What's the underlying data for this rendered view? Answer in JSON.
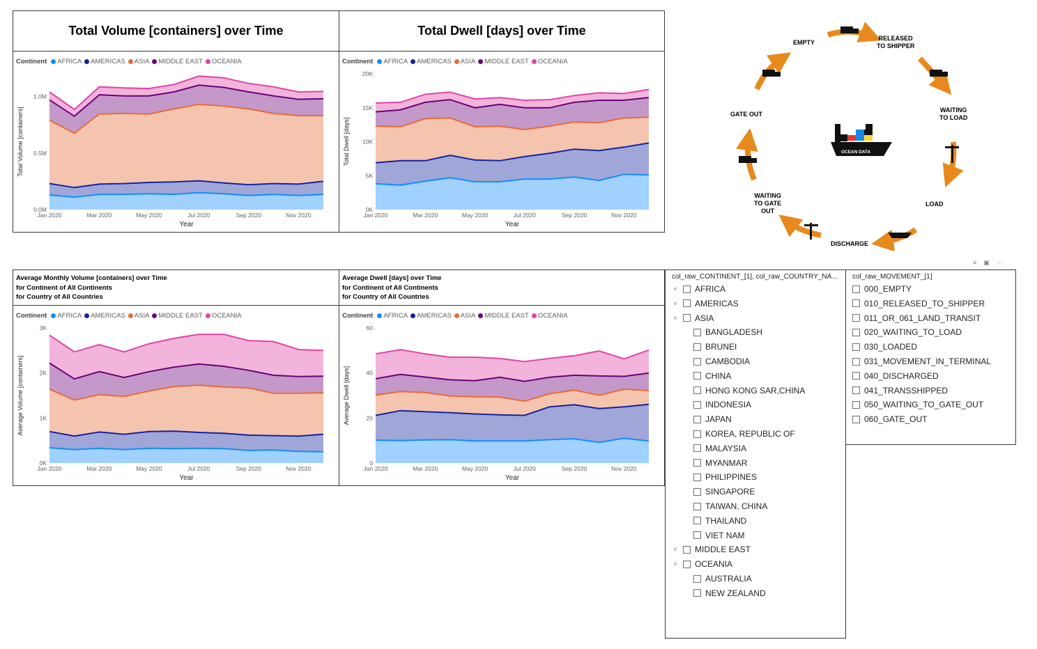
{
  "legend_title": "Continent",
  "continents": [
    "AFRICA",
    "AMERICAS",
    "ASIA",
    "MIDDLE EAST",
    "OCEANIA"
  ],
  "series_colors": {
    "AFRICA": "#118DFF",
    "AMERICAS": "#12239E",
    "ASIA": "#E66C37",
    "MIDDLE EAST": "#6B007B",
    "OCEANIA": "#E044A7"
  },
  "titles": {
    "total_volume": "Total Volume [containers] over Time",
    "total_dwell": "Total Dwell [days] over Time",
    "avg_volume": [
      "Average Monthly Volume [containers] over Time",
      "for Continent of All Continents",
      "for Country of All Countries"
    ],
    "avg_dwell": [
      "Average Dwell [days] over Time",
      "for Continent of All Continents",
      "for Country of All Countries"
    ]
  },
  "chart_data": [
    {
      "id": "total_volume",
      "type": "area",
      "stacked": true,
      "x": [
        "Jan 2020",
        "Feb 2020",
        "Mar 2020",
        "Apr 2020",
        "May 2020",
        "Jun 2020",
        "Jul 2020",
        "Aug 2020",
        "Sep 2020",
        "Oct 2020",
        "Nov 2020",
        "Dec 2020"
      ],
      "xticks": [
        "Jan 2020",
        "Mar 2020",
        "May 2020",
        "Jul 2020",
        "Sep 2020",
        "Nov 2020"
      ],
      "yticks": [
        "0.0M",
        "0.5M",
        "1.0M"
      ],
      "ytick_values": [
        0,
        500000,
        1000000
      ],
      "ylim": [
        0,
        1200000
      ],
      "xlabel": "Year",
      "ylabel": "Total Volume [containers]",
      "series": [
        {
          "name": "AFRICA",
          "values": [
            130000,
            110000,
            135000,
            135000,
            140000,
            135000,
            150000,
            140000,
            125000,
            135000,
            125000,
            135000
          ]
        },
        {
          "name": "AMERICAS",
          "values": [
            100000,
            85000,
            90000,
            95000,
            100000,
            110000,
            105000,
            95000,
            95000,
            95000,
            100000,
            115000
          ]
        },
        {
          "name": "ASIA",
          "values": [
            560000,
            480000,
            620000,
            620000,
            605000,
            645000,
            675000,
            680000,
            670000,
            620000,
            605000,
            580000
          ]
        },
        {
          "name": "MIDDLE EAST",
          "values": [
            180000,
            150000,
            170000,
            155000,
            160000,
            150000,
            170000,
            165000,
            150000,
            155000,
            145000,
            150000
          ]
        },
        {
          "name": "OCEANIA",
          "values": [
            70000,
            60000,
            70000,
            70000,
            65000,
            65000,
            80000,
            85000,
            75000,
            80000,
            65000,
            65000
          ]
        }
      ]
    },
    {
      "id": "total_dwell",
      "type": "area",
      "stacked": true,
      "x": [
        "Jan 2020",
        "Feb 2020",
        "Mar 2020",
        "Apr 2020",
        "May 2020",
        "Jun 2020",
        "Jul 2020",
        "Aug 2020",
        "Sep 2020",
        "Oct 2020",
        "Nov 2020",
        "Dec 2020"
      ],
      "xticks": [
        "Jan 2020",
        "Mar 2020",
        "May 2020",
        "Jul 2020",
        "Sep 2020",
        "Nov 2020"
      ],
      "yticks": [
        "0K",
        "5K",
        "10K",
        "15K",
        "20K"
      ],
      "ytick_values": [
        0,
        5000,
        10000,
        15000,
        20000
      ],
      "ylim": [
        0,
        20000
      ],
      "xlabel": "Year",
      "ylabel": "Total Dwell [days]",
      "series": [
        {
          "name": "AFRICA",
          "values": [
            3800,
            3600,
            4200,
            4700,
            4100,
            4100,
            4500,
            4500,
            4800,
            4300,
            5200,
            5100
          ]
        },
        {
          "name": "AMERICAS",
          "values": [
            3100,
            3600,
            3000,
            3300,
            3200,
            3100,
            3300,
            3800,
            4100,
            4400,
            4000,
            4700
          ]
        },
        {
          "name": "ASIA",
          "values": [
            5400,
            5000,
            6200,
            5500,
            4900,
            5100,
            4000,
            4000,
            4000,
            4100,
            4300,
            3800
          ]
        },
        {
          "name": "MIDDLE EAST",
          "values": [
            2100,
            2500,
            2400,
            2700,
            2800,
            3200,
            3200,
            2700,
            2900,
            3300,
            2600,
            2900
          ]
        },
        {
          "name": "OCEANIA",
          "values": [
            1300,
            1100,
            1200,
            1100,
            1300,
            1000,
            1100,
            1200,
            1000,
            1100,
            1000,
            1200
          ]
        }
      ]
    },
    {
      "id": "avg_volume",
      "type": "area",
      "stacked": true,
      "x": [
        "Jan 2020",
        "Feb 2020",
        "Mar 2020",
        "Apr 2020",
        "May 2020",
        "Jun 2020",
        "Jul 2020",
        "Aug 2020",
        "Sep 2020",
        "Oct 2020",
        "Nov 2020",
        "Dec 2020"
      ],
      "xticks": [
        "Jan 2020",
        "Mar 2020",
        "May 2020",
        "Jul 2020",
        "Sep 2020",
        "Nov 2020"
      ],
      "yticks": [
        "0K",
        "1K",
        "2K",
        "3K"
      ],
      "ytick_values": [
        0,
        1000,
        2000,
        3000
      ],
      "ylim": [
        0,
        3000
      ],
      "xlabel": "Year",
      "ylabel": "Average Volume [containers]",
      "series": [
        {
          "name": "AFRICA",
          "values": [
            340,
            300,
            330,
            300,
            330,
            320,
            330,
            320,
            280,
            290,
            260,
            250
          ]
        },
        {
          "name": "AMERICAS",
          "values": [
            360,
            300,
            360,
            340,
            370,
            390,
            350,
            340,
            340,
            320,
            340,
            390
          ]
        },
        {
          "name": "ASIA",
          "values": [
            940,
            800,
            830,
            840,
            900,
            990,
            1050,
            1030,
            1050,
            940,
            950,
            920
          ]
        },
        {
          "name": "MIDDLE EAST",
          "values": [
            580,
            470,
            510,
            420,
            430,
            430,
            470,
            460,
            390,
            400,
            370,
            370
          ]
        },
        {
          "name": "OCEANIA",
          "values": [
            620,
            600,
            600,
            570,
            620,
            640,
            660,
            710,
            660,
            750,
            600,
            570
          ]
        }
      ]
    },
    {
      "id": "avg_dwell",
      "type": "area",
      "stacked": true,
      "x": [
        "Jan 2020",
        "Feb 2020",
        "Mar 2020",
        "Apr 2020",
        "May 2020",
        "Jun 2020",
        "Jul 2020",
        "Aug 2020",
        "Sep 2020",
        "Oct 2020",
        "Nov 2020",
        "Dec 2020"
      ],
      "xticks": [
        "Jan 2020",
        "Mar 2020",
        "May 2020",
        "Jul 2020",
        "Sep 2020",
        "Nov 2020"
      ],
      "yticks": [
        "0",
        "20",
        "40",
        "60"
      ],
      "ytick_values": [
        0,
        20,
        40,
        60
      ],
      "ylim": [
        0,
        60
      ],
      "xlabel": "Year",
      "ylabel": "Average Dwell [days]",
      "series": [
        {
          "name": "AFRICA",
          "values": [
            10.2,
            10,
            10.3,
            10.4,
            9.8,
            9.8,
            9.8,
            10.4,
            10.8,
            9.2,
            11,
            9.8
          ]
        },
        {
          "name": "AMERICAS",
          "values": [
            11,
            13.3,
            12.5,
            12,
            12,
            11.6,
            11.4,
            14.6,
            15.1,
            15,
            14,
            16.3
          ]
        },
        {
          "name": "ASIA",
          "values": [
            9,
            8.5,
            8.5,
            7.4,
            7.6,
            7.9,
            6.3,
            5.8,
            6.5,
            5.9,
            7.8,
            6.1
          ]
        },
        {
          "name": "MIDDLE EAST",
          "values": [
            7.3,
            7.6,
            6.9,
            7.2,
            7.2,
            8.8,
            8.8,
            7.3,
            6.6,
            8.6,
            5.7,
            7.8
          ]
        },
        {
          "name": "OCEANIA",
          "values": [
            11,
            11,
            10.3,
            10,
            10.4,
            8.4,
            8.8,
            8.4,
            8.7,
            11.1,
            7.8,
            10.2
          ]
        }
      ]
    }
  ],
  "cycle": {
    "center_label": "OCEAN DATA",
    "steps": {
      "empty": "EMPTY",
      "released": [
        "RELEASED",
        "TO SHIPPER"
      ],
      "waiting_load": [
        "WAITING",
        "TO LOAD"
      ],
      "load": "LOAD",
      "discharge": "DISCHARGE",
      "waiting_gate_out": [
        "WAITING",
        "TO GATE",
        "OUT"
      ],
      "gate_out": "GATE OUT"
    }
  },
  "slicer_country": {
    "header": "col_raw_CONTINENT_[1], col_raw_COUNTRY_NA...",
    "rows": [
      {
        "label": "AFRICA",
        "level": 0,
        "chevron": "down"
      },
      {
        "label": "AMERICAS",
        "level": 0,
        "chevron": "down"
      },
      {
        "label": "ASIA",
        "level": 0,
        "chevron": "up"
      },
      {
        "label": "BANGLADESH",
        "level": 1
      },
      {
        "label": "BRUNEI",
        "level": 1
      },
      {
        "label": "CAMBODIA",
        "level": 1
      },
      {
        "label": "CHINA",
        "level": 1
      },
      {
        "label": "HONG KONG SAR,CHINA",
        "level": 1
      },
      {
        "label": "INDONESIA",
        "level": 1
      },
      {
        "label": "JAPAN",
        "level": 1
      },
      {
        "label": "KOREA, REPUBLIC OF",
        "level": 1
      },
      {
        "label": "MALAYSIA",
        "level": 1
      },
      {
        "label": "MYANMAR",
        "level": 1
      },
      {
        "label": "PHILIPPINES",
        "level": 1
      },
      {
        "label": "SINGAPORE",
        "level": 1
      },
      {
        "label": "TAIWAN, CHINA",
        "level": 1
      },
      {
        "label": "THAILAND",
        "level": 1
      },
      {
        "label": "VIET NAM",
        "level": 1
      },
      {
        "label": "MIDDLE EAST",
        "level": 0,
        "chevron": "down"
      },
      {
        "label": "OCEANIA",
        "level": 0,
        "chevron": "up"
      },
      {
        "label": "AUSTRALIA",
        "level": 1
      },
      {
        "label": "NEW ZEALAND",
        "level": 1
      }
    ]
  },
  "slicer_movement": {
    "header": "col_raw_MOVEMENT_[1]",
    "rows": [
      "000_EMPTY",
      "010_RELEASED_TO_SHIPPER",
      "011_OR_061_LAND_TRANSIT",
      "020_WAITING_TO_LOAD",
      "030_LOADED",
      "031_MOVEMENT_IN_TERMINAL",
      "040_DISCHARGED",
      "041_TRANSSHIPPED",
      "050_WAITING_TO_GATE_OUT",
      "060_GATE_OUT"
    ]
  },
  "toolbar": {
    "filter_icon": "filter-icon",
    "focus_icon": "focus-mode-icon",
    "more_icon": "more-options-icon"
  }
}
